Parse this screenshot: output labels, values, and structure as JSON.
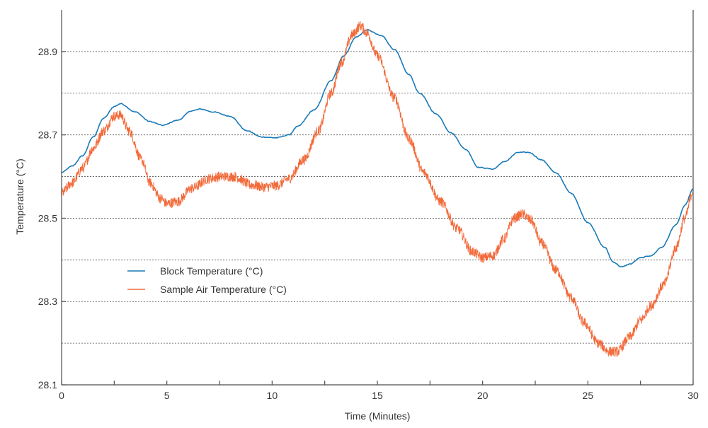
{
  "chart_data": {
    "type": "line",
    "title": "",
    "xlabel": "Time (Minutes)",
    "ylabel": "Temperature (°C)",
    "xlim": [
      0,
      30
    ],
    "ylim": [
      28.1,
      29.0
    ],
    "x_ticks": [
      0,
      5,
      10,
      15,
      20,
      25,
      30
    ],
    "x_minor_ticks": [
      2.5,
      7.5,
      12.5,
      17.5,
      22.5,
      27.5
    ],
    "y_ticks": [
      28.1,
      28.3,
      28.5,
      28.7,
      28.9
    ],
    "y_tick_labels": [
      "28.1",
      "28.3",
      "28.5",
      "28.7",
      "28.9"
    ],
    "y_gridlines": [
      28.2,
      28.3,
      28.4,
      28.5,
      28.6,
      28.7,
      28.8,
      28.9
    ],
    "grid": "horizontal-dashed",
    "legend": "inside-left",
    "series": [
      {
        "name": "Block Temperature (°C)",
        "color": "#1a7ab8",
        "noise": 0.0,
        "points": [
          [
            0,
            28.61
          ],
          [
            0.5,
            28.625
          ],
          [
            1,
            28.65
          ],
          [
            1.5,
            28.695
          ],
          [
            2,
            28.74
          ],
          [
            2.5,
            28.768
          ],
          [
            2.8,
            28.775
          ],
          [
            3.5,
            28.755
          ],
          [
            4.2,
            28.732
          ],
          [
            4.8,
            28.723
          ],
          [
            5.5,
            28.735
          ],
          [
            6.2,
            28.758
          ],
          [
            6.6,
            28.762
          ],
          [
            7.2,
            28.755
          ],
          [
            8,
            28.745
          ],
          [
            8.8,
            28.71
          ],
          [
            9.5,
            28.695
          ],
          [
            10.2,
            28.693
          ],
          [
            10.8,
            28.7
          ],
          [
            11.2,
            28.72
          ],
          [
            12,
            28.76
          ],
          [
            12.8,
            28.83
          ],
          [
            13.4,
            28.89
          ],
          [
            14,
            28.935
          ],
          [
            14.5,
            28.952
          ],
          [
            15.2,
            28.938
          ],
          [
            15.8,
            28.905
          ],
          [
            16.5,
            28.845
          ],
          [
            17,
            28.8
          ],
          [
            17.8,
            28.75
          ],
          [
            18.5,
            28.705
          ],
          [
            19.2,
            28.665
          ],
          [
            19.8,
            28.622
          ],
          [
            20.5,
            28.618
          ],
          [
            21,
            28.635
          ],
          [
            21.7,
            28.658
          ],
          [
            22.2,
            28.658
          ],
          [
            22.8,
            28.64
          ],
          [
            23.5,
            28.608
          ],
          [
            24.2,
            28.56
          ],
          [
            25,
            28.49
          ],
          [
            25.8,
            28.43
          ],
          [
            26.2,
            28.395
          ],
          [
            26.6,
            28.383
          ],
          [
            27,
            28.39
          ],
          [
            27.5,
            28.405
          ],
          [
            28,
            28.41
          ],
          [
            28.5,
            28.43
          ],
          [
            29.2,
            28.485
          ],
          [
            29.6,
            28.53
          ],
          [
            30,
            28.57
          ]
        ]
      },
      {
        "name": "Sample Air Temperature (°C)",
        "color": "#f26a3a",
        "noise": 0.012,
        "points": [
          [
            0,
            28.56
          ],
          [
            0.5,
            28.585
          ],
          [
            1,
            28.62
          ],
          [
            1.5,
            28.668
          ],
          [
            2,
            28.71
          ],
          [
            2.5,
            28.745
          ],
          [
            2.8,
            28.748
          ],
          [
            3.2,
            28.71
          ],
          [
            3.8,
            28.64
          ],
          [
            4.2,
            28.585
          ],
          [
            4.7,
            28.548
          ],
          [
            5,
            28.535
          ],
          [
            5.5,
            28.54
          ],
          [
            6.2,
            28.572
          ],
          [
            7,
            28.595
          ],
          [
            7.5,
            28.6
          ],
          [
            8.2,
            28.6
          ],
          [
            9,
            28.58
          ],
          [
            9.6,
            28.575
          ],
          [
            10.2,
            28.578
          ],
          [
            10.8,
            28.595
          ],
          [
            11.5,
            28.64
          ],
          [
            12.2,
            28.71
          ],
          [
            12.8,
            28.8
          ],
          [
            13.3,
            28.875
          ],
          [
            13.8,
            28.94
          ],
          [
            14.2,
            28.962
          ],
          [
            14.5,
            28.945
          ],
          [
            15,
            28.89
          ],
          [
            15.8,
            28.79
          ],
          [
            16.5,
            28.69
          ],
          [
            17.2,
            28.61
          ],
          [
            18,
            28.54
          ],
          [
            18.8,
            28.475
          ],
          [
            19.5,
            28.42
          ],
          [
            20,
            28.405
          ],
          [
            20.5,
            28.41
          ],
          [
            21,
            28.45
          ],
          [
            21.5,
            28.5
          ],
          [
            21.9,
            28.51
          ],
          [
            22.3,
            28.495
          ],
          [
            22.8,
            28.44
          ],
          [
            23.5,
            28.375
          ],
          [
            24.2,
            28.31
          ],
          [
            24.8,
            28.25
          ],
          [
            25.5,
            28.2
          ],
          [
            26,
            28.18
          ],
          [
            26.4,
            28.18
          ],
          [
            27,
            28.215
          ],
          [
            27.5,
            28.255
          ],
          [
            28,
            28.29
          ],
          [
            28.6,
            28.34
          ],
          [
            29.2,
            28.43
          ],
          [
            29.6,
            28.5
          ],
          [
            30,
            28.565
          ]
        ]
      }
    ]
  }
}
